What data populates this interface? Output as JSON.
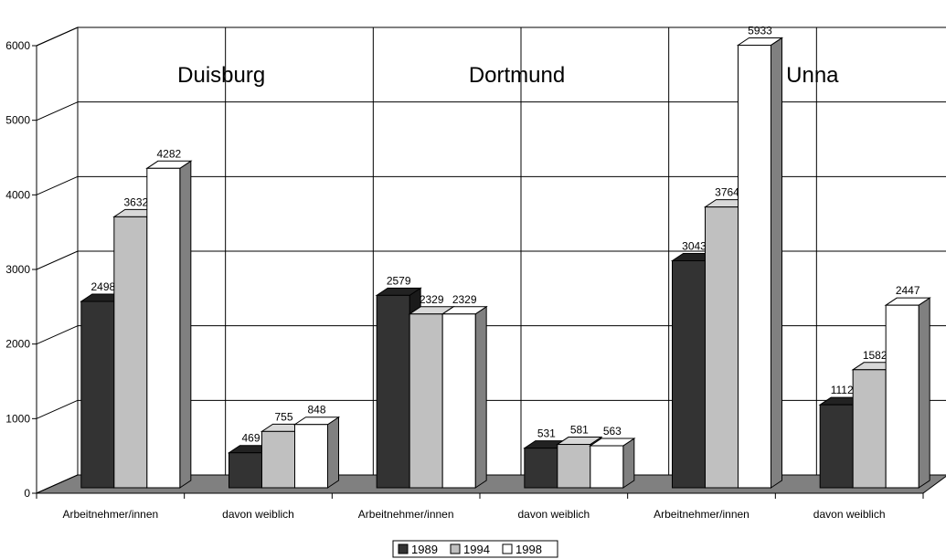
{
  "chart_data": {
    "type": "bar",
    "title": "",
    "xlabel": "",
    "ylabel": "",
    "ylim": [
      0,
      6000
    ],
    "yticks": [
      "0",
      "1000",
      "2000",
      "3000",
      "4000",
      "5000",
      "6000"
    ],
    "grid": true,
    "legend_position": "bottom",
    "groups": [
      {
        "region": "Duisburg",
        "categories": [
          "Arbeitnehmer/innen",
          "davon weiblich"
        ]
      },
      {
        "region": "Dortmund",
        "categories": [
          "Arbeitnehmer/innen",
          "davon weiblich"
        ]
      },
      {
        "region": "Unna",
        "categories": [
          "Arbeitnehmer/innen",
          "davon weiblich"
        ]
      }
    ],
    "categories": [
      "Arbeitnehmer/innen",
      "davon weiblich",
      "Arbeitnehmer/innen",
      "davon weiblich",
      "Arbeitnehmer/innen",
      "davon weiblich"
    ],
    "series": [
      {
        "name": "1989",
        "color": "#333333",
        "values": [
          2498,
          469,
          2579,
          531,
          3043,
          1112
        ]
      },
      {
        "name": "1994",
        "color": "#c0c0c0",
        "values": [
          3632,
          755,
          2329,
          581,
          3764,
          1582
        ]
      },
      {
        "name": "1998",
        "color": "#ffffff",
        "values": [
          4282,
          848,
          2329,
          563,
          5933,
          2447
        ]
      }
    ]
  }
}
